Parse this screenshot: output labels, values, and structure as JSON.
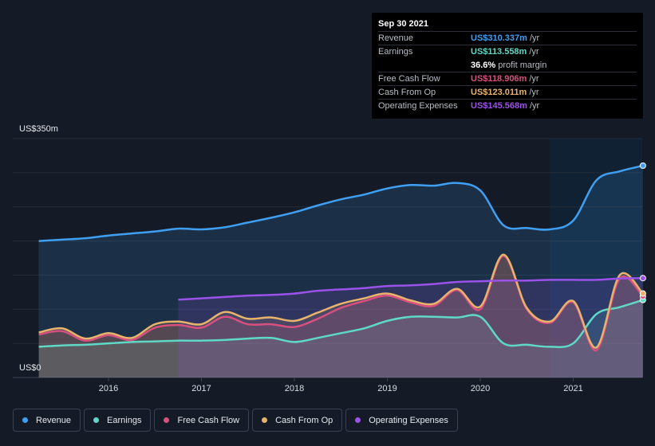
{
  "chart_data": {
    "type": "area",
    "y_axis": {
      "top_label": "US$350m",
      "bottom_label": "US$0",
      "ylim": [
        0,
        350
      ]
    },
    "x_ticks": [
      "2016",
      "2017",
      "2018",
      "2019",
      "2020",
      "2021"
    ],
    "x_range": [
      2015.25,
      2021.75
    ],
    "forecast_start": 2020.75,
    "series": [
      {
        "name": "Revenue",
        "color": "#3fa0f3",
        "start": 2015.25,
        "points": [
          [
            2015.25,
            200
          ],
          [
            2015.5,
            202
          ],
          [
            2015.75,
            204
          ],
          [
            2016.0,
            208
          ],
          [
            2016.25,
            211
          ],
          [
            2016.5,
            214
          ],
          [
            2016.75,
            218
          ],
          [
            2017.0,
            217
          ],
          [
            2017.25,
            220
          ],
          [
            2017.5,
            227
          ],
          [
            2017.75,
            234
          ],
          [
            2018.0,
            242
          ],
          [
            2018.25,
            252
          ],
          [
            2018.5,
            261
          ],
          [
            2018.75,
            268
          ],
          [
            2019.0,
            277
          ],
          [
            2019.25,
            282
          ],
          [
            2019.5,
            281
          ],
          [
            2019.75,
            285
          ],
          [
            2020.0,
            274
          ],
          [
            2020.25,
            223
          ],
          [
            2020.5,
            219
          ],
          [
            2020.75,
            217
          ],
          [
            2021.0,
            230
          ],
          [
            2021.25,
            289
          ],
          [
            2021.5,
            302
          ],
          [
            2021.75,
            310.337
          ]
        ]
      },
      {
        "name": "Earnings",
        "color": "#5fd9c6",
        "start": 2015.25,
        "points": [
          [
            2015.25,
            45
          ],
          [
            2015.5,
            47
          ],
          [
            2015.75,
            48
          ],
          [
            2016.0,
            50
          ],
          [
            2016.25,
            52
          ],
          [
            2016.5,
            53
          ],
          [
            2016.75,
            54
          ],
          [
            2017.0,
            54
          ],
          [
            2017.25,
            55
          ],
          [
            2017.5,
            57
          ],
          [
            2017.75,
            58
          ],
          [
            2018.0,
            52
          ],
          [
            2018.25,
            58
          ],
          [
            2018.5,
            65
          ],
          [
            2018.75,
            72
          ],
          [
            2019.0,
            83
          ],
          [
            2019.25,
            89
          ],
          [
            2019.5,
            89
          ],
          [
            2019.75,
            88
          ],
          [
            2020.0,
            89
          ],
          [
            2020.25,
            50
          ],
          [
            2020.5,
            48
          ],
          [
            2020.75,
            45
          ],
          [
            2021.0,
            50
          ],
          [
            2021.25,
            93
          ],
          [
            2021.5,
            103
          ],
          [
            2021.75,
            113.558
          ]
        ]
      },
      {
        "name": "Free Cash Flow",
        "color": "#d7507f",
        "start": 2015.25,
        "points": [
          [
            2015.25,
            63
          ],
          [
            2015.5,
            68
          ],
          [
            2015.75,
            54
          ],
          [
            2016.0,
            62
          ],
          [
            2016.25,
            55
          ],
          [
            2016.5,
            73
          ],
          [
            2016.75,
            77
          ],
          [
            2017.0,
            73
          ],
          [
            2017.25,
            89
          ],
          [
            2017.5,
            78
          ],
          [
            2017.75,
            78
          ],
          [
            2018.0,
            74
          ],
          [
            2018.25,
            86
          ],
          [
            2018.5,
            102
          ],
          [
            2018.75,
            112
          ],
          [
            2019.0,
            120
          ],
          [
            2019.25,
            110
          ],
          [
            2019.5,
            105
          ],
          [
            2019.75,
            128
          ],
          [
            2020.0,
            100
          ],
          [
            2020.25,
            178
          ],
          [
            2020.5,
            100
          ],
          [
            2020.75,
            80
          ],
          [
            2021.0,
            110
          ],
          [
            2021.25,
            40
          ],
          [
            2021.5,
            145
          ],
          [
            2021.75,
            118.906
          ]
        ]
      },
      {
        "name": "Cash From Op",
        "color": "#e8b46c",
        "start": 2015.25,
        "points": [
          [
            2015.25,
            66
          ],
          [
            2015.5,
            72
          ],
          [
            2015.75,
            57
          ],
          [
            2016.0,
            65
          ],
          [
            2016.25,
            58
          ],
          [
            2016.5,
            78
          ],
          [
            2016.75,
            82
          ],
          [
            2017.0,
            78
          ],
          [
            2017.25,
            96
          ],
          [
            2017.5,
            86
          ],
          [
            2017.75,
            88
          ],
          [
            2018.0,
            83
          ],
          [
            2018.25,
            95
          ],
          [
            2018.5,
            108
          ],
          [
            2018.75,
            116
          ],
          [
            2019.0,
            123
          ],
          [
            2019.25,
            113
          ],
          [
            2019.5,
            108
          ],
          [
            2019.75,
            130
          ],
          [
            2020.0,
            104
          ],
          [
            2020.25,
            180
          ],
          [
            2020.5,
            102
          ],
          [
            2020.75,
            82
          ],
          [
            2021.0,
            112
          ],
          [
            2021.25,
            44
          ],
          [
            2021.5,
            150
          ],
          [
            2021.75,
            123.011
          ]
        ]
      },
      {
        "name": "Operating Expenses",
        "color": "#9a52e8",
        "start": 2016.75,
        "points": [
          [
            2016.75,
            114
          ],
          [
            2017.0,
            116
          ],
          [
            2017.25,
            118
          ],
          [
            2017.5,
            120
          ],
          [
            2017.75,
            121
          ],
          [
            2018.0,
            123
          ],
          [
            2018.25,
            127
          ],
          [
            2018.5,
            129
          ],
          [
            2018.75,
            131
          ],
          [
            2019.0,
            134
          ],
          [
            2019.25,
            135
          ],
          [
            2019.5,
            137
          ],
          [
            2019.75,
            140
          ],
          [
            2020.0,
            141
          ],
          [
            2020.25,
            142
          ],
          [
            2020.5,
            142
          ],
          [
            2020.75,
            143
          ],
          [
            2021.0,
            143
          ],
          [
            2021.25,
            143
          ],
          [
            2021.5,
            145
          ],
          [
            2021.75,
            145.568
          ]
        ]
      }
    ]
  },
  "tooltip": {
    "date": "Sep 30 2021",
    "rows": [
      {
        "key": "Revenue",
        "value": "US$310.337m",
        "unit": "/yr",
        "color": "#3fa0f3"
      },
      {
        "key": "Earnings",
        "value": "US$113.558m",
        "unit": "/yr",
        "color": "#5fd9c6"
      },
      {
        "key": "",
        "value": "36.6%",
        "unit": "profit margin",
        "color": "#ffffff"
      },
      {
        "key": "Free Cash Flow",
        "value": "US$118.906m",
        "unit": "/yr",
        "color": "#d7507f"
      },
      {
        "key": "Cash From Op",
        "value": "US$123.011m",
        "unit": "/yr",
        "color": "#e8b46c"
      },
      {
        "key": "Operating Expenses",
        "value": "US$145.568m",
        "unit": "/yr",
        "color": "#9a52e8"
      }
    ]
  },
  "legend": [
    {
      "label": "Revenue",
      "color": "#3fa0f3"
    },
    {
      "label": "Earnings",
      "color": "#5fd9c6"
    },
    {
      "label": "Free Cash Flow",
      "color": "#d7507f"
    },
    {
      "label": "Cash From Op",
      "color": "#e8b46c"
    },
    {
      "label": "Operating Expenses",
      "color": "#9a52e8"
    }
  ]
}
